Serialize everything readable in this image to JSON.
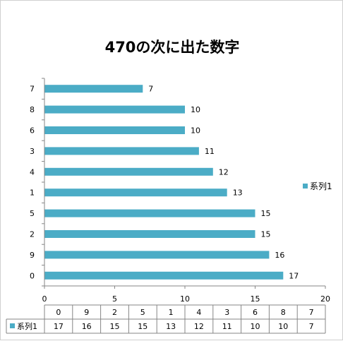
{
  "title": "470の次に出た数字",
  "chart_data": {
    "type": "bar",
    "orientation": "horizontal",
    "title": "470の次に出た数字",
    "xlabel": "",
    "ylabel": "",
    "categories": [
      "0",
      "9",
      "2",
      "5",
      "1",
      "4",
      "3",
      "6",
      "8",
      "7"
    ],
    "series": [
      {
        "name": "系列1",
        "values": [
          17,
          16,
          15,
          15,
          13,
          12,
          11,
          10,
          10,
          7
        ]
      }
    ],
    "xlim": [
      0,
      20
    ],
    "xticks": [
      "0",
      "5",
      "10",
      "15",
      "20"
    ],
    "grid": false,
    "legend_position": "right",
    "data_labels": true,
    "data_table": true,
    "colors": {
      "bar": "#4bacc6",
      "axis": "#868686",
      "table_border": "#868686"
    }
  }
}
